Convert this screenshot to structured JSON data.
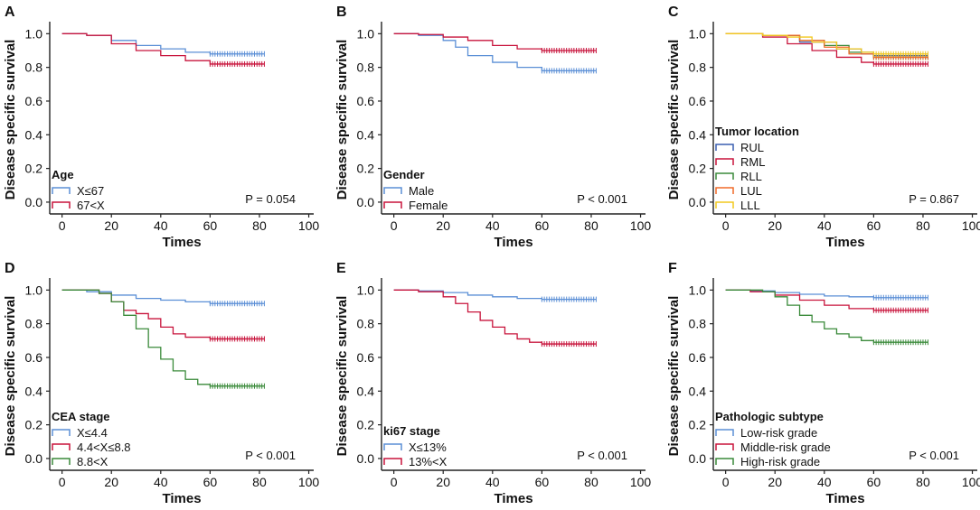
{
  "figure": {
    "x_axis_label": "Times",
    "y_axis_label": "Disease specific survival",
    "x_ticks": [
      "0",
      "20",
      "40",
      "60",
      "80",
      "100"
    ],
    "y_ticks": [
      "0.0",
      "0.2",
      "0.4",
      "0.6",
      "0.8",
      "1.0"
    ]
  },
  "chart_data": [
    {
      "panel": "A",
      "type": "line",
      "title": "",
      "xlabel": "Times",
      "ylabel": "Disease specific survival",
      "xlim": [
        -5,
        102
      ],
      "ylim": [
        -0.07,
        1.05
      ],
      "legend_title": "Age",
      "legend_position": "bottom-left",
      "annotation": "P = 0.054",
      "series": [
        {
          "name": "X≤67",
          "color": "#5b8fd6",
          "x": [
            0,
            10,
            20,
            30,
            40,
            50,
            60,
            82
          ],
          "y": [
            1.0,
            0.99,
            0.96,
            0.93,
            0.91,
            0.89,
            0.88,
            0.88
          ],
          "censor_x": [
            60,
            82
          ]
        },
        {
          "name": "67<X",
          "color": "#c8143c",
          "x": [
            0,
            10,
            20,
            30,
            40,
            50,
            60,
            82
          ],
          "y": [
            1.0,
            0.99,
            0.94,
            0.9,
            0.87,
            0.84,
            0.82,
            0.82
          ],
          "censor_x": [
            60,
            82
          ]
        }
      ]
    },
    {
      "panel": "B",
      "type": "line",
      "title": "",
      "xlabel": "Times",
      "ylabel": "Disease specific survival",
      "xlim": [
        -5,
        102
      ],
      "ylim": [
        -0.07,
        1.05
      ],
      "legend_title": "Gender",
      "legend_position": "bottom-left",
      "annotation": "P < 0.001",
      "series": [
        {
          "name": "Male",
          "color": "#5b8fd6",
          "x": [
            0,
            10,
            20,
            25,
            30,
            40,
            50,
            60,
            82
          ],
          "y": [
            1.0,
            0.99,
            0.96,
            0.92,
            0.87,
            0.83,
            0.8,
            0.78,
            0.78
          ],
          "censor_x": [
            60,
            82
          ]
        },
        {
          "name": "Female",
          "color": "#c8143c",
          "x": [
            0,
            10,
            20,
            30,
            40,
            50,
            60,
            82
          ],
          "y": [
            1.0,
            0.995,
            0.98,
            0.96,
            0.93,
            0.91,
            0.9,
            0.9
          ],
          "censor_x": [
            60,
            82
          ]
        }
      ]
    },
    {
      "panel": "C",
      "type": "line",
      "title": "",
      "xlabel": "Times",
      "ylabel": "Disease specific survival",
      "xlim": [
        -5,
        102
      ],
      "ylim": [
        -0.07,
        1.05
      ],
      "legend_title": "Tumor location",
      "legend_position": "bottom-left",
      "annotation": "P = 0.867",
      "series": [
        {
          "name": "RUL",
          "color": "#3a5fb0",
          "x": [
            0,
            15,
            30,
            45,
            55,
            60,
            82
          ],
          "y": [
            1.0,
            0.99,
            0.95,
            0.91,
            0.88,
            0.87,
            0.87
          ],
          "censor_x": [
            60,
            82
          ]
        },
        {
          "name": "RML",
          "color": "#c8143c",
          "x": [
            0,
            15,
            25,
            35,
            45,
            55,
            60,
            82
          ],
          "y": [
            1.0,
            0.98,
            0.94,
            0.9,
            0.86,
            0.83,
            0.82,
            0.82
          ],
          "censor_x": [
            60,
            82
          ]
        },
        {
          "name": "RLL",
          "color": "#3a8a3a",
          "x": [
            0,
            15,
            30,
            40,
            50,
            60,
            82
          ],
          "y": [
            1.0,
            0.99,
            0.96,
            0.93,
            0.89,
            0.86,
            0.86
          ],
          "censor_x": [
            60,
            82
          ]
        },
        {
          "name": "LUL",
          "color": "#f06a28",
          "x": [
            0,
            15,
            30,
            40,
            50,
            60,
            82
          ],
          "y": [
            1.0,
            0.99,
            0.96,
            0.92,
            0.88,
            0.86,
            0.86
          ],
          "censor_x": [
            60,
            82
          ]
        },
        {
          "name": "LLL",
          "color": "#f2c81e",
          "x": [
            0,
            15,
            25,
            35,
            45,
            55,
            60,
            82
          ],
          "y": [
            1.0,
            0.99,
            0.98,
            0.95,
            0.91,
            0.89,
            0.88,
            0.88
          ],
          "censor_x": [
            60,
            82
          ]
        }
      ]
    },
    {
      "panel": "D",
      "type": "line",
      "title": "",
      "xlabel": "Times",
      "ylabel": "Disease specific survival",
      "xlim": [
        -5,
        102
      ],
      "ylim": [
        -0.07,
        1.05
      ],
      "legend_title": "CEA stage",
      "legend_position": "bottom-left",
      "annotation": "P < 0.001",
      "series": [
        {
          "name": "X≤4.4",
          "color": "#5b8fd6",
          "x": [
            0,
            10,
            20,
            30,
            40,
            50,
            60,
            82
          ],
          "y": [
            1.0,
            0.99,
            0.97,
            0.95,
            0.94,
            0.93,
            0.92,
            0.92
          ],
          "censor_x": [
            60,
            82
          ]
        },
        {
          "name": "4.4<X≤8.8",
          "color": "#c8143c",
          "x": [
            0,
            15,
            20,
            25,
            30,
            35,
            40,
            45,
            50,
            60,
            82
          ],
          "y": [
            1.0,
            0.98,
            0.93,
            0.88,
            0.86,
            0.83,
            0.78,
            0.74,
            0.72,
            0.71,
            0.71
          ],
          "censor_x": [
            60,
            82
          ]
        },
        {
          "name": "8.8<X",
          "color": "#3a8a3a",
          "x": [
            0,
            15,
            20,
            25,
            30,
            35,
            40,
            45,
            50,
            55,
            60,
            82
          ],
          "y": [
            1.0,
            0.98,
            0.93,
            0.85,
            0.77,
            0.66,
            0.59,
            0.52,
            0.47,
            0.44,
            0.43,
            0.43
          ],
          "censor_x": [
            60,
            82
          ]
        }
      ]
    },
    {
      "panel": "E",
      "type": "line",
      "title": "",
      "xlabel": "Times",
      "ylabel": "Disease specific survival",
      "xlim": [
        -5,
        102
      ],
      "ylim": [
        -0.07,
        1.05
      ],
      "legend_title": "ki67 stage",
      "legend_position": "bottom-left",
      "annotation": "P < 0.001",
      "series": [
        {
          "name": "X≤13%",
          "color": "#5b8fd6",
          "x": [
            0,
            10,
            20,
            30,
            40,
            50,
            60,
            82
          ],
          "y": [
            1.0,
            0.995,
            0.985,
            0.97,
            0.96,
            0.95,
            0.945,
            0.945
          ],
          "censor_x": [
            60,
            82
          ]
        },
        {
          "name": "13%<X",
          "color": "#c8143c",
          "x": [
            0,
            10,
            20,
            25,
            30,
            35,
            40,
            45,
            50,
            55,
            60,
            82
          ],
          "y": [
            1.0,
            0.99,
            0.96,
            0.92,
            0.87,
            0.82,
            0.78,
            0.74,
            0.71,
            0.69,
            0.68,
            0.68
          ],
          "censor_x": [
            60,
            82
          ]
        }
      ]
    },
    {
      "panel": "F",
      "type": "line",
      "title": "",
      "xlabel": "Times",
      "ylabel": "Disease specific survival",
      "xlim": [
        -5,
        102
      ],
      "ylim": [
        -0.07,
        1.05
      ],
      "legend_title": "Pathologic subtype",
      "legend_position": "bottom-left",
      "annotation": "P < 0.001",
      "series": [
        {
          "name": "Low-risk grade",
          "color": "#5b8fd6",
          "x": [
            0,
            10,
            20,
            30,
            40,
            50,
            60,
            82
          ],
          "y": [
            1.0,
            0.995,
            0.985,
            0.975,
            0.965,
            0.96,
            0.955,
            0.955
          ],
          "censor_x": [
            60,
            82
          ]
        },
        {
          "name": "Middle-risk grade",
          "color": "#c8143c",
          "x": [
            0,
            10,
            20,
            30,
            40,
            50,
            60,
            82
          ],
          "y": [
            1.0,
            0.99,
            0.97,
            0.94,
            0.91,
            0.89,
            0.88,
            0.88
          ],
          "censor_x": [
            60,
            82
          ]
        },
        {
          "name": "High-risk grade",
          "color": "#3a8a3a",
          "x": [
            0,
            15,
            20,
            25,
            30,
            35,
            40,
            45,
            50,
            55,
            60,
            82
          ],
          "y": [
            1.0,
            0.99,
            0.96,
            0.91,
            0.85,
            0.81,
            0.77,
            0.74,
            0.72,
            0.7,
            0.69,
            0.69
          ],
          "censor_x": [
            60,
            82
          ]
        }
      ]
    }
  ]
}
